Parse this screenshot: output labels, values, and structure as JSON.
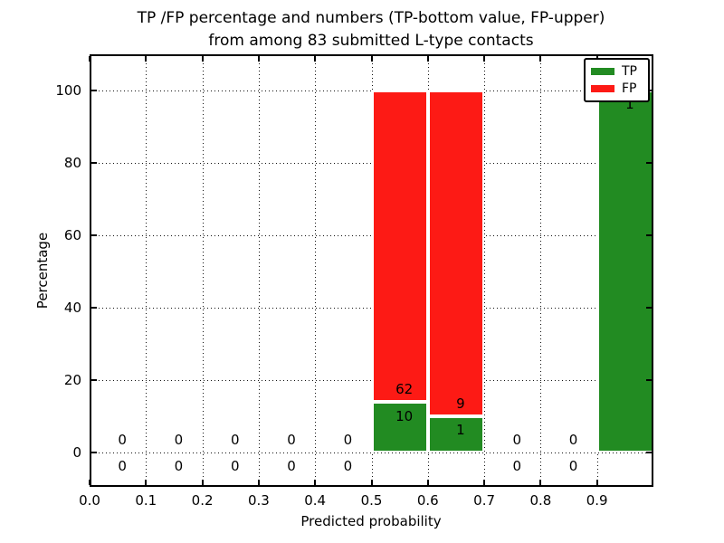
{
  "title": {
    "line1": "TP /FP percentage and numbers (TP-bottom value, FP-upper)",
    "line2": "from among 83 submitted L-type contacts"
  },
  "axes": {
    "xlabel": "Predicted probability",
    "ylabel": "Percentage",
    "xticks": [
      "0.0",
      "0.1",
      "0.2",
      "0.3",
      "0.4",
      "0.5",
      "0.6",
      "0.7",
      "0.8",
      "0.9"
    ],
    "xtick_values": [
      0.0,
      0.1,
      0.2,
      0.3,
      0.4,
      0.5,
      0.6,
      0.7,
      0.8,
      0.9
    ],
    "yticks": [
      "0",
      "20",
      "40",
      "60",
      "80",
      "100"
    ],
    "ytick_values": [
      0,
      20,
      40,
      60,
      80,
      100
    ]
  },
  "legend": {
    "items": [
      {
        "label": "TP",
        "color": "#228b22"
      },
      {
        "label": "FP",
        "color": "#fd1a15"
      }
    ]
  },
  "chart_data": {
    "type": "bar",
    "stacked": true,
    "title": "TP /FP percentage and numbers (TP-bottom value, FP-upper) from among 83 submitted L-type contacts",
    "xlabel": "Predicted probability",
    "ylabel": "Percentage",
    "xlim": [
      0.0,
      1.0
    ],
    "ylim": [
      -9.5,
      110
    ],
    "grid": "dotted",
    "legend_position": "upper right",
    "total_contacts": 83,
    "bin_width": 0.1,
    "categories": [
      "0.0-0.1",
      "0.1-0.2",
      "0.2-0.3",
      "0.3-0.4",
      "0.4-0.5",
      "0.5-0.6",
      "0.6-0.7",
      "0.7-0.8",
      "0.8-0.9",
      "0.9-1.0"
    ],
    "series": [
      {
        "name": "TP",
        "color": "#228b22",
        "counts": [
          0,
          0,
          0,
          0,
          0,
          10,
          1,
          0,
          0,
          1
        ],
        "percent": [
          0,
          0,
          0,
          0,
          0,
          13.89,
          10,
          0,
          0,
          100
        ]
      },
      {
        "name": "FP",
        "color": "#fd1a15",
        "counts": [
          0,
          0,
          0,
          0,
          0,
          62,
          9,
          0,
          0,
          0
        ],
        "percent": [
          0,
          0,
          0,
          0,
          0,
          86.11,
          90,
          0,
          0,
          0
        ]
      }
    ],
    "bar_labels": {
      "tp": [
        "0",
        "0",
        "0",
        "0",
        "0",
        "10",
        "1",
        "0",
        "0",
        "1"
      ],
      "fp": [
        "0",
        "0",
        "0",
        "0",
        "0",
        "62",
        "9",
        "0",
        "0",
        null
      ]
    }
  }
}
